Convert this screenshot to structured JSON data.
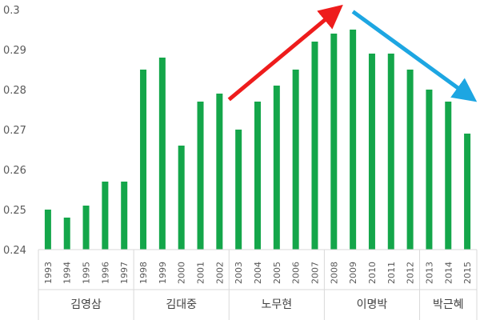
{
  "chart_data": {
    "type": "bar",
    "title": "",
    "xlabel": "",
    "ylabel": "",
    "ylim": [
      0.24,
      0.3
    ],
    "yticks": [
      "0.24",
      "0.25",
      "0.26",
      "0.27",
      "0.28",
      "0.29",
      "0.3"
    ],
    "grid": false,
    "bar_color": "#14a64a",
    "categories": [
      "1993",
      "1994",
      "1995",
      "1996",
      "1997",
      "1998",
      "1999",
      "2000",
      "2001",
      "2002",
      "2003",
      "2004",
      "2005",
      "2006",
      "2007",
      "2008",
      "2009",
      "2010",
      "2011",
      "2012",
      "2013",
      "2014",
      "2015"
    ],
    "values": [
      0.25,
      0.248,
      0.251,
      0.257,
      0.257,
      0.285,
      0.288,
      0.266,
      0.277,
      0.279,
      0.27,
      0.277,
      0.281,
      0.285,
      0.292,
      0.294,
      0.295,
      0.289,
      0.289,
      0.285,
      0.28,
      0.277,
      0.269
    ],
    "groups": [
      {
        "label": "김영삼",
        "start": 0,
        "end": 4
      },
      {
        "label": "김대중",
        "start": 5,
        "end": 9
      },
      {
        "label": "노무현",
        "start": 10,
        "end": 14
      },
      {
        "label": "이명박",
        "start": 15,
        "end": 19
      },
      {
        "label": "박근혜",
        "start": 20,
        "end": 22
      }
    ],
    "annotations": [
      {
        "type": "arrow",
        "color": "#ee1c1c",
        "from_x": 10,
        "from_y": 0.2775,
        "to_x": 15.5,
        "to_y": 0.2993
      },
      {
        "type": "arrow",
        "color": "#1da6e2",
        "from_x": 16.5,
        "from_y": 0.2995,
        "to_x": 22.5,
        "to_y": 0.2787
      }
    ]
  }
}
